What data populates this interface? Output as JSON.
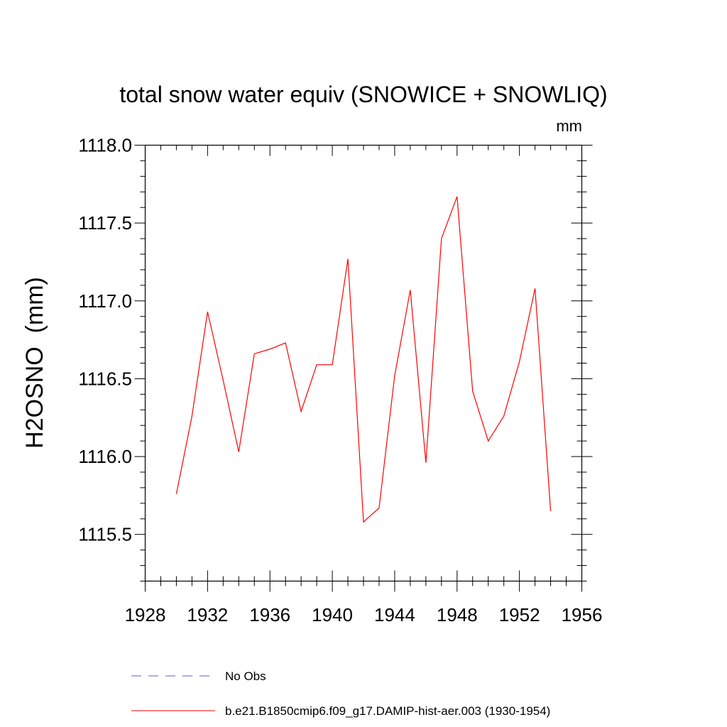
{
  "chart_data": {
    "type": "line",
    "title": "total snow water equiv (SNOWICE + SNOWLIQ)",
    "units": "mm",
    "ylabel": "H2OSNO  (mm)",
    "xlabel": "",
    "xlim": [
      1928,
      1956
    ],
    "ylim": [
      1115.2,
      1118.0
    ],
    "xticks": [
      "1928",
      "1932",
      "1936",
      "1940",
      "1944",
      "1948",
      "1952",
      "1956"
    ],
    "yticks": [
      "1115.5",
      "1116.0",
      "1116.5",
      "1117.0",
      "1117.5",
      "1118.0"
    ],
    "grid": false,
    "legend_position": "bottom",
    "series": [
      {
        "name": "No Obs",
        "color": "#6a5acd",
        "dash": "dashed",
        "x": [],
        "y": []
      },
      {
        "name": "b.e21.B1850cmip6.f09_g17.DAMIP-hist-aer.003 (1930-1954)",
        "color": "#ff0000",
        "dash": "solid",
        "x": [
          1930,
          1931,
          1932,
          1933,
          1934,
          1935,
          1936,
          1937,
          1938,
          1939,
          1940,
          1941,
          1942,
          1943,
          1944,
          1945,
          1946,
          1947,
          1948,
          1949,
          1950,
          1951,
          1952,
          1953,
          1954
        ],
        "y": [
          1115.76,
          1116.26,
          1116.93,
          1116.49,
          1116.03,
          1116.66,
          1116.69,
          1116.73,
          1116.29,
          1116.59,
          1116.59,
          1117.27,
          1115.58,
          1115.67,
          1116.52,
          1117.07,
          1115.96,
          1117.4,
          1117.67,
          1116.42,
          1116.1,
          1116.26,
          1116.61,
          1117.08,
          1115.65
        ]
      }
    ]
  }
}
